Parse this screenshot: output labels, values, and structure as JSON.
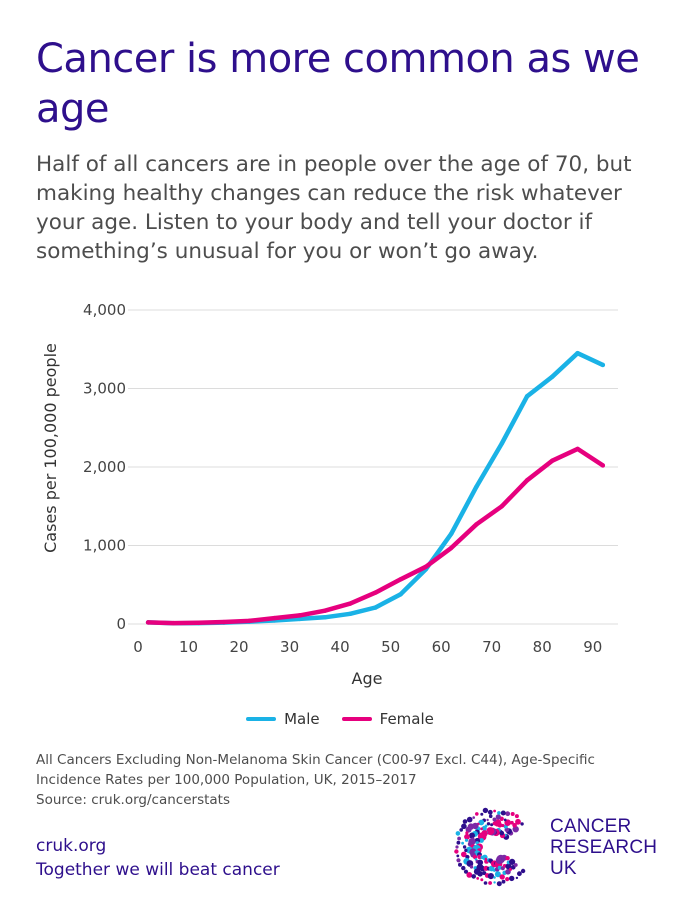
{
  "header": {
    "title": "Cancer is more common as we age",
    "subtitle": "Half of all cancers are in people over the age of 70, but making healthy changes can reduce the risk whatever your age. Listen to your body and tell your doctor if something’s unusual for you or won’t go away."
  },
  "chart_data": {
    "type": "line",
    "xlabel": "Age",
    "ylabel": "Cases per 100,000 people",
    "x": [
      2,
      7,
      12,
      17,
      22,
      27,
      32,
      37,
      42,
      47,
      52,
      57,
      62,
      67,
      72,
      77,
      82,
      87,
      92
    ],
    "xlim": [
      0,
      95
    ],
    "xticks": [
      0,
      10,
      20,
      30,
      40,
      50,
      60,
      70,
      80,
      90
    ],
    "xtick_labels": [
      "0",
      "10",
      "20",
      "30",
      "40",
      "50",
      "60",
      "70",
      "80",
      "90"
    ],
    "ylim": [
      0,
      4000
    ],
    "yticks": [
      0,
      1000,
      2000,
      3000,
      4000
    ],
    "ytick_labels": [
      "0",
      "1,000",
      "2,000",
      "3,000",
      "4,000"
    ],
    "grid": "horizontal",
    "legend_position": "bottom",
    "series": [
      {
        "name": "Male",
        "color": "#1ab2e6",
        "values": [
          20,
          10,
          12,
          18,
          30,
          45,
          65,
          85,
          130,
          210,
          380,
          700,
          1150,
          1750,
          2300,
          2900,
          3150,
          3450,
          3300
        ]
      },
      {
        "name": "Female",
        "color": "#e6007e",
        "values": [
          20,
          12,
          15,
          25,
          40,
          75,
          110,
          170,
          260,
          400,
          570,
          730,
          970,
          1270,
          1500,
          1830,
          2080,
          2230,
          2020
        ]
      }
    ]
  },
  "legend": {
    "male": "Male",
    "female": "Female"
  },
  "footnote": {
    "line1": "All Cancers Excluding Non-Melanoma Skin Cancer (C00-97 Excl. C44), Age-Specific",
    "line2": "Incidence Rates per 100,000 Population, UK, 2015–2017",
    "line3": "Source: cruk.org/cancerstats"
  },
  "footer": {
    "url": "cruk.org",
    "tagline": "Together we will beat cancer",
    "logo_line1": "CANCER",
    "logo_line2": "RESEARCH",
    "logo_line3": "UK"
  },
  "colors": {
    "brand_purple": "#2e0f8c",
    "male_blue": "#1ab2e6",
    "female_pink": "#e6007e"
  }
}
